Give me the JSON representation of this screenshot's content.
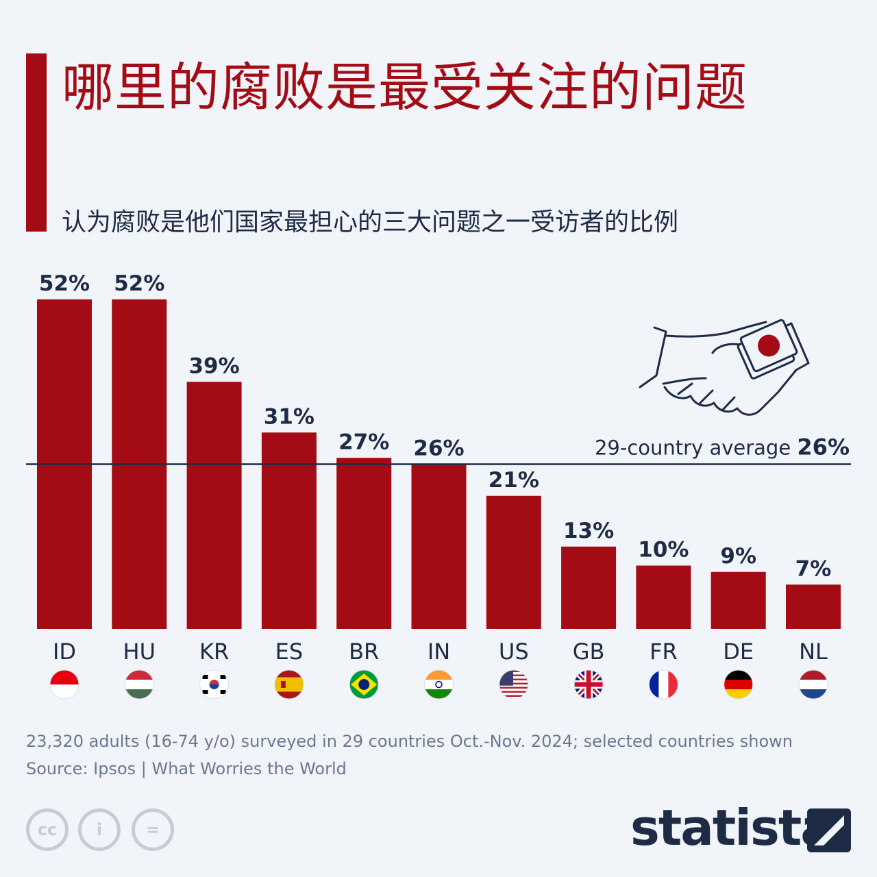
{
  "title": "哪里的腐败是最受关注的问题",
  "subtitle": "认为腐败是他们国家最担心的三大问题之一受访者的比例",
  "colors": {
    "bar": "#a30c14",
    "text": "#1d2b44",
    "background": "#f1f4f8",
    "muted": "#6a7891"
  },
  "chart_data": {
    "type": "bar",
    "categories": [
      "ID",
      "HU",
      "KR",
      "ES",
      "BR",
      "IN",
      "US",
      "GB",
      "FR",
      "DE",
      "NL"
    ],
    "values": [
      52,
      52,
      39,
      31,
      27,
      26,
      21,
      13,
      10,
      9,
      7
    ],
    "value_labels": [
      "52%",
      "52%",
      "39%",
      "31%",
      "27%",
      "26%",
      "21%",
      "13%",
      "10%",
      "9%",
      "7%"
    ],
    "ylim": [
      0,
      52
    ],
    "grid": false,
    "reference_line": {
      "value": 26,
      "label": "29-country average",
      "value_label": "26%"
    }
  },
  "flags": [
    "indonesia-flag",
    "hungary-flag",
    "south-korea-flag",
    "spain-flag",
    "brazil-flag",
    "india-flag",
    "usa-flag",
    "uk-flag",
    "france-flag",
    "germany-flag",
    "netherlands-flag"
  ],
  "footer": {
    "note": "23,320 adults (16-74 y/o) surveyed in 29 countries Oct.-Nov. 2024; selected countries shown",
    "source": "Source: Ipsos | What Worries the World",
    "cc_labels": [
      "cc",
      "i",
      "="
    ],
    "brand": "statista"
  }
}
